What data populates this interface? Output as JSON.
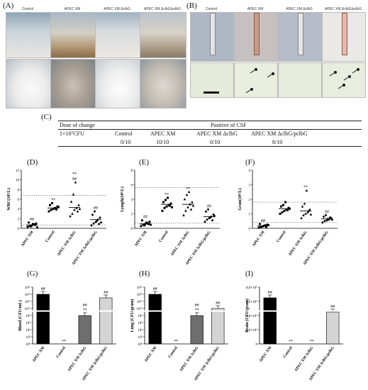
{
  "panels": {
    "A": "(A)",
    "B": "(B)",
    "C": "(C)",
    "D": "(D)",
    "E": "(E)",
    "F": "(F)",
    "G": "(G)",
    "H": "(H)",
    "I": "(I)"
  },
  "panel_a": {
    "captions": [
      "Control",
      "APEC XM",
      "APEC XM ΔclbG",
      "APEC XM ΔclbG/pclbG"
    ]
  },
  "panel_b": {
    "captions": [
      "Control",
      "APEC XM",
      "APEC XM ΔclbG",
      "APEC XM ΔclbG/pclbG"
    ]
  },
  "table": {
    "col1_header": "Dose of change",
    "header": "Positive of CSF",
    "dose": "1×10⁷CFU",
    "groups": [
      "Control",
      "APEC XM",
      "APEC XM ΔclbG",
      "APEC XM ΔclbG/pclbG"
    ],
    "values": [
      "0/10",
      "10/10",
      "0/10",
      "8/10"
    ]
  },
  "colors": {
    "black": "#000000",
    "dark_gray": "#6e6e6e",
    "light_gray": "#d4d4d4",
    "dotted": "#555555"
  },
  "chart_data": [
    {
      "id": "D",
      "type": "scatter",
      "ylabel": "WBC(10⁹/L)",
      "yticks": [
        "0",
        "2",
        "4",
        "6",
        "8",
        "10",
        "12"
      ],
      "ylim": [
        0,
        12
      ],
      "categories": [
        "APEC XM",
        "Control",
        "APEC XM ΔclbG",
        "APEC XM ΔclbG/pclbG"
      ],
      "annotations": [
        "##",
        "**",
        "**\n##",
        "##"
      ],
      "reference_lines": [
        6.8,
        0.7
      ],
      "series": [
        {
          "values": [
            0.3,
            0.5,
            0.6,
            0.8,
            1.0,
            1.2,
            0.4,
            0.9,
            0.7,
            0.2
          ],
          "mean": 0.7
        },
        {
          "values": [
            3.5,
            3.8,
            4.0,
            4.2,
            4.5,
            4.8,
            5.2,
            4.1,
            3.9,
            4.4
          ],
          "mean": 4.2
        },
        {
          "values": [
            2.5,
            3.0,
            3.8,
            4.2,
            4.8,
            5.5,
            7.0,
            9.5,
            3.5,
            4.0
          ],
          "mean": 4.3
        },
        {
          "values": [
            0.6,
            1.0,
            1.3,
            1.8,
            2.2,
            2.8,
            3.5,
            1.5,
            0.9,
            1.2
          ],
          "mean": 1.8
        }
      ]
    },
    {
      "id": "E",
      "type": "scatter",
      "ylabel": "Lymph(10⁹/L)",
      "yticks": [
        "0",
        "2",
        "4",
        "6",
        "8"
      ],
      "ylim": [
        0,
        8
      ],
      "categories": [
        "APEC XM",
        "Control",
        "APEC XM ΔclbG",
        "APEC XM ΔclbG/pclbG"
      ],
      "annotations": [
        "##",
        "**",
        "**",
        "##"
      ],
      "reference_lines": [
        5.6,
        0.7
      ],
      "series": [
        {
          "values": [
            0.3,
            0.5,
            0.6,
            0.7,
            0.9,
            1.1,
            0.4,
            0.8,
            0.6,
            0.5
          ],
          "mean": 0.6
        },
        {
          "values": [
            2.4,
            2.8,
            3.0,
            3.2,
            3.4,
            3.6,
            3.9,
            4.2,
            3.1,
            2.9
          ],
          "mean": 3.3
        },
        {
          "values": [
            1.8,
            2.4,
            2.9,
            3.3,
            3.6,
            4.0,
            4.6,
            5.0,
            2.6,
            3.1
          ],
          "mean": 3.3
        },
        {
          "values": [
            0.9,
            1.2,
            1.4,
            1.6,
            1.9,
            2.3,
            2.6,
            1.5,
            1.1,
            1.7
          ],
          "mean": 1.6
        }
      ]
    },
    {
      "id": "F",
      "type": "scatter",
      "ylabel": "Gran(10⁹/L)",
      "yticks": [
        "0",
        "1",
        "2",
        "3",
        "4"
      ],
      "ylim": [
        0,
        4
      ],
      "categories": [
        "APEC XM",
        "Control",
        "APEC XM ΔclbG",
        "APEC XM ΔclbG/pclbG"
      ],
      "annotations": [
        "##",
        "",
        "**",
        "##"
      ],
      "reference_lines": [
        1.8,
        0.4
      ],
      "series": [
        {
          "values": [
            0.05,
            0.1,
            0.15,
            0.2,
            0.25,
            0.3,
            0.12,
            0.18,
            0.08,
            0.22
          ],
          "mean": 0.17
        },
        {
          "values": [
            1.0,
            1.1,
            1.2,
            1.3,
            1.4,
            1.5,
            1.6,
            1.8,
            1.25,
            1.35
          ],
          "mean": 1.35
        },
        {
          "values": [
            0.7,
            0.9,
            1.0,
            1.1,
            1.3,
            1.5,
            1.7,
            2.6,
            1.2,
            0.95
          ],
          "mean": 1.2
        },
        {
          "values": [
            0.4,
            0.5,
            0.55,
            0.6,
            0.7,
            0.8,
            0.9,
            0.65,
            0.75,
            0.6
          ],
          "mean": 0.65
        }
      ]
    },
    {
      "id": "G",
      "type": "bar",
      "ylabel": "Blood (CFU/mL)",
      "yticks": [
        "10⁰",
        "10²",
        "10⁴",
        "10⁶",
        "10⁸",
        "10¹⁰",
        "10¹²",
        "10¹⁴",
        "10¹⁶"
      ],
      "categories": [
        "APEC XM",
        "Control",
        "APEC XM ΔclbG",
        "APEC XM ΔclbG/pclbG"
      ],
      "values": [
        100000000000000.0,
        0,
        100000000,
        10000000000000.0
      ],
      "annotations": [
        "##",
        "**",
        "##\n**",
        "##"
      ],
      "colors": [
        "#000000",
        "#ffffff",
        "#6e6e6e",
        "#d4d4d4"
      ]
    },
    {
      "id": "H",
      "type": "bar",
      "ylabel": "Lung (CFU/gram)",
      "yticks": [
        "10⁰",
        "10²",
        "10⁴",
        "10⁶",
        "10⁸",
        "10¹⁰",
        "10¹²",
        "10¹⁴",
        "10¹⁶"
      ],
      "categories": [
        "APEC XM",
        "Control",
        "APEC XM ΔclbG",
        "APEC XM ΔclbG/pclbG"
      ],
      "values": [
        100000000000000.0,
        0,
        100000000,
        10000000000
      ],
      "annotations": [
        "##",
        "**",
        "##\n**",
        "##"
      ],
      "colors": [
        "#000000",
        "#ffffff",
        "#6e6e6e",
        "#d4d4d4"
      ]
    },
    {
      "id": "I",
      "type": "bar",
      "ylabel": "Brain (CFU/gram)",
      "yticks": [
        "0",
        "2.0×10⁵",
        "4.0×10⁵",
        "6.0×10⁵",
        "8.0×10⁵"
      ],
      "categories": [
        "APEC XM",
        "Control",
        "APEC XM ΔclbG",
        "APEC XM ΔclbG/pclbG"
      ],
      "values": [
        650000,
        0,
        0,
        450000
      ],
      "annotations": [
        "##",
        "**",
        "**",
        "##"
      ],
      "colors": [
        "#000000",
        "#ffffff",
        "#6e6e6e",
        "#d4d4d4"
      ]
    }
  ]
}
